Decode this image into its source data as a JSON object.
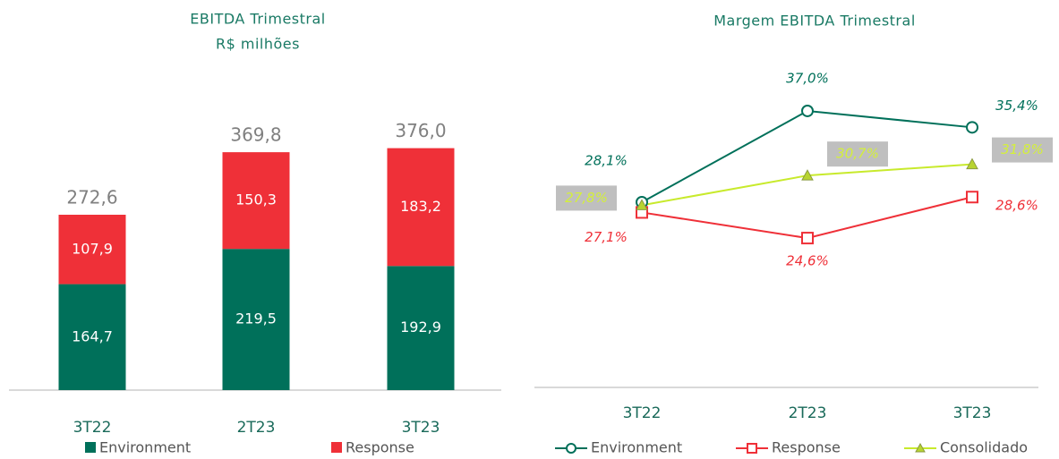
{
  "chart_data": [
    {
      "type": "stacked-bar",
      "title": "EBITDA Trimestral",
      "subtitle": "R$ milhões",
      "categories": [
        "3T22",
        "2T23",
        "3T23"
      ],
      "series": [
        {
          "name": "Environment",
          "color": "#00705a",
          "values": [
            164.7,
            219.5,
            192.9
          ],
          "value_labels": [
            "164,7",
            "219,5",
            "192,9"
          ]
        },
        {
          "name": "Response",
          "color": "#ef3038",
          "values": [
            107.9,
            150.3,
            183.2
          ],
          "value_labels": [
            "107,9",
            "150,3",
            "183,2"
          ]
        }
      ],
      "totals": [
        272.6,
        369.8,
        376.0
      ],
      "total_labels": [
        "272,6",
        "369,8",
        "376,0"
      ]
    },
    {
      "type": "line",
      "title": "Margem EBITDA Trimestral",
      "categories": [
        "3T22",
        "2T23",
        "3T23"
      ],
      "series": [
        {
          "name": "Environment",
          "color": "#00705a",
          "marker": "circle",
          "values": [
            28.1,
            37.0,
            35.4
          ],
          "value_labels": [
            "28,1%",
            "37,0%",
            "35,4%"
          ]
        },
        {
          "name": "Response",
          "color": "#ef3038",
          "marker": "square",
          "values": [
            27.1,
            24.6,
            28.6
          ],
          "value_labels": [
            "27,1%",
            "24,6%",
            "28,6%"
          ]
        },
        {
          "name": "Consolidado",
          "color": "#c8ea2c",
          "marker": "triangle",
          "values": [
            27.8,
            30.7,
            31.8
          ],
          "value_labels": [
            "27,8%",
            "30,7%",
            "31,8%"
          ]
        }
      ]
    }
  ]
}
